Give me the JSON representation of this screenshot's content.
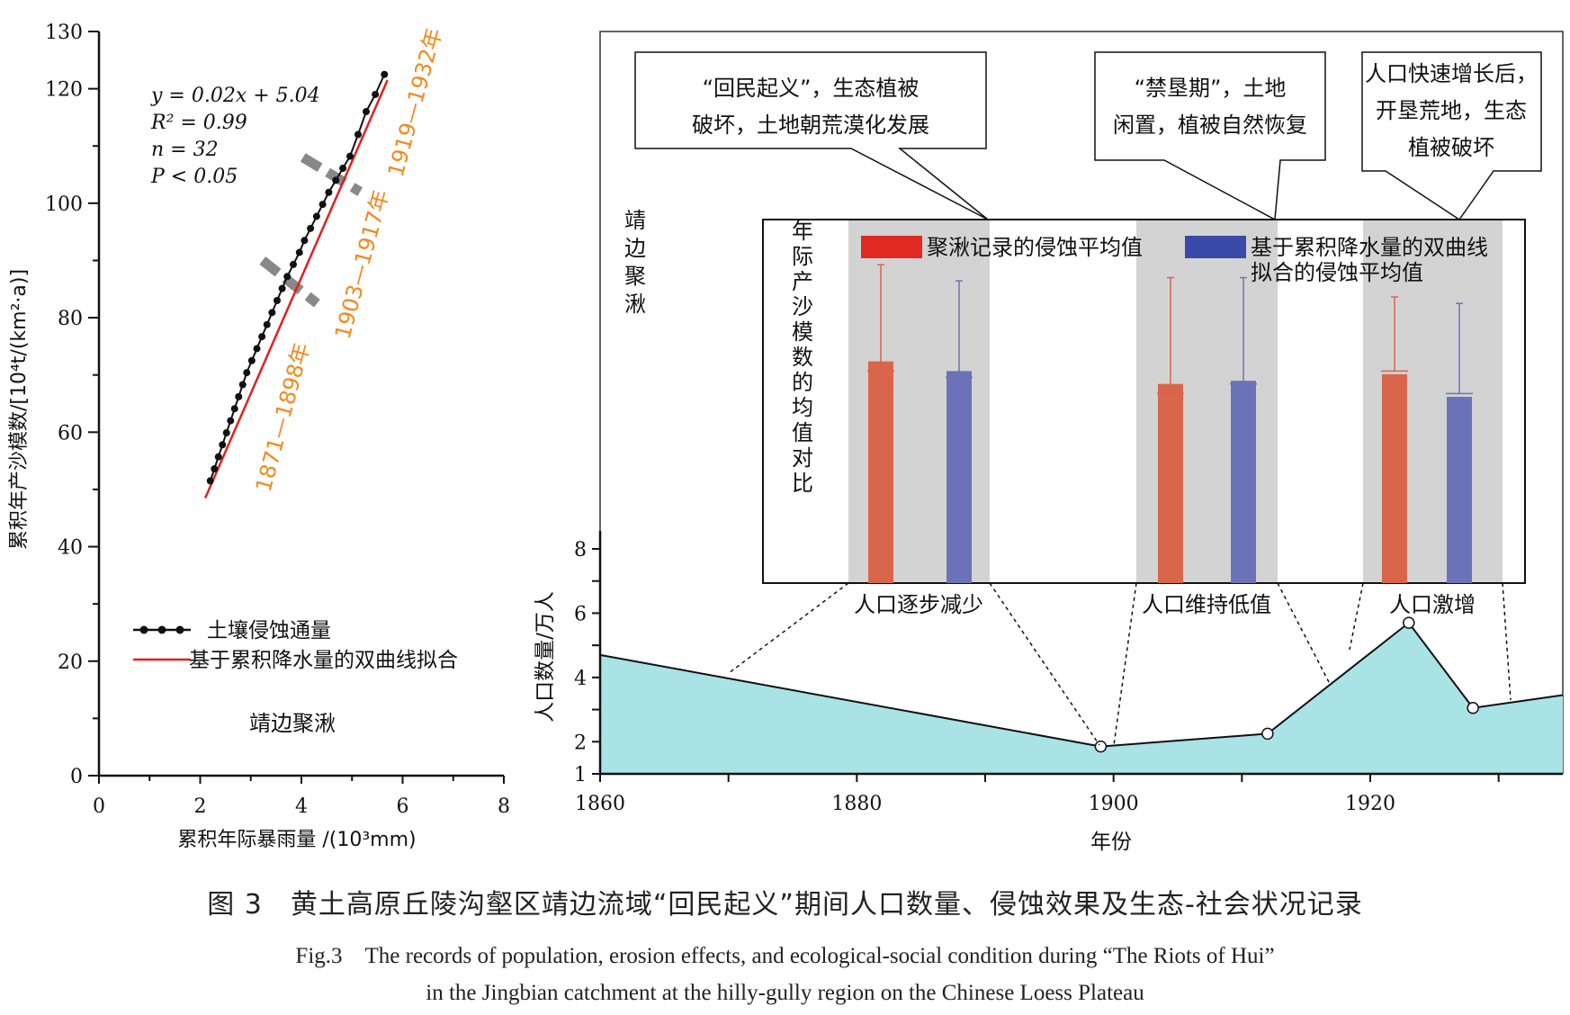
{
  "chart_data": [
    {
      "type": "scatter",
      "xlabel": "累积年际暴雨量 /(10³mm)",
      "ylabel": "累积年产沙模数/[10⁴t/(km²·a)]",
      "xlim": [
        0,
        8
      ],
      "ylim": [
        0,
        130
      ],
      "x_ticks": [
        0,
        2,
        4,
        6,
        8
      ],
      "y_ticks": [
        0,
        20,
        40,
        60,
        80,
        100,
        120,
        130
      ],
      "site_label": "靖边聚湫",
      "equation": [
        "y = 0.02x + 5.04",
        "R² = 0.99",
        "n = 32",
        "P < 0.05"
      ],
      "legend": [
        "土壤侵蚀通量",
        "基于累积降水量的双曲线拟合"
      ],
      "period_labels": [
        "1871—1898年",
        "1903—1917年",
        "1919—1932年"
      ],
      "colors": {
        "points": "#111111",
        "fit": "#e02020",
        "period_text": "#f08a1e",
        "break_marks": "#888888"
      },
      "series": [
        {
          "name": "土壤侵蚀通量",
          "x": [
            2.2,
            2.28,
            2.36,
            2.44,
            2.52,
            2.6,
            2.68,
            2.76,
            2.84,
            2.92,
            3.02,
            3.12,
            3.22,
            3.32,
            3.42,
            3.52,
            3.62,
            3.72,
            3.84,
            3.96,
            4.06,
            4.18,
            4.3,
            4.42,
            4.54,
            4.68,
            4.82,
            4.96,
            5.12,
            5.28,
            5.46,
            5.64
          ],
          "y": [
            51.5,
            53.6,
            55.7,
            57.8,
            59.9,
            62.0,
            64.1,
            66.2,
            68.3,
            70.4,
            72.5,
            74.6,
            76.7,
            78.8,
            80.9,
            83.0,
            85.1,
            87.2,
            89.3,
            91.4,
            93.5,
            95.6,
            97.7,
            99.8,
            101.9,
            104.0,
            106.1,
            108.2,
            112.0,
            116.0,
            119.0,
            122.5
          ]
        },
        {
          "name": "基于累积降水量的双曲线拟合",
          "x": [
            2.1,
            5.7
          ],
          "y": [
            48.5,
            121.5
          ]
        }
      ]
    },
    {
      "type": "area",
      "xlabel": "年份",
      "ylabel": "人口数量/万人",
      "xlim": [
        1860,
        1935
      ],
      "ylim": [
        1,
        8
      ],
      "x_ticks": [
        1860,
        1880,
        1900,
        1920
      ],
      "y_ticks": [
        1,
        2,
        4,
        6,
        8
      ],
      "x": [
        1860,
        1899,
        1912,
        1923,
        1928,
        1935
      ],
      "y": [
        4.7,
        1.85,
        2.25,
        5.7,
        3.05,
        3.45
      ],
      "marked_points_x": [
        1899,
        1912,
        1923,
        1928
      ],
      "colors": {
        "fill": "#a9e3e6",
        "line": "#111111"
      },
      "site_label": "靖边聚湫",
      "annotations": [
        {
          "text": "“回民起义”，生态植被破坏，土地朝荒漠化发展",
          "lines": [
            "“回民起义”，生态植被",
            "破坏，土地朝荒漠化发展"
          ]
        },
        {
          "text": "“禁垦期”，土地闲置，植被自然恢复",
          "lines": [
            "“禁垦期”，土地",
            "闲置，植被自然恢复"
          ]
        },
        {
          "text": "人口快速增长后，开垦荒地，生态植被破坏",
          "lines": [
            "人口快速增长后，",
            "开垦荒地，生态",
            "植被破坏"
          ]
        }
      ],
      "period_labels": [
        "人口逐步减少",
        "人口维持低值",
        "人口激增"
      ],
      "shaded_periods": [
        [
          1871,
          1898
        ],
        [
          1903,
          1917
        ],
        [
          1919,
          1932
        ]
      ]
    },
    {
      "type": "bar",
      "title": "年际产沙模数的均值对比",
      "categories": [
        "人口逐步减少",
        "人口维持低值",
        "人口激增"
      ],
      "ylim": [
        0,
        100
      ],
      "series": [
        {
          "name": "聚湫记录的侵蚀平均值",
          "values": [
            61,
            54,
            57
          ],
          "error_bars": [
            [
              58,
              91
            ],
            [
              51,
              87
            ],
            [
              58,
              81
            ]
          ]
        },
        {
          "name": "基于累积降水量的双曲线拟合的侵蚀平均值",
          "values": [
            58,
            55,
            50
          ],
          "error_bars": [
            [
              56,
              86
            ],
            [
              54,
              87
            ],
            [
              51,
              79
            ]
          ]
        }
      ],
      "colors": {
        "series_1": "#d9654b",
        "series_2": "#6b73b8",
        "legend_1": "#e02a22",
        "legend_2": "#3a4aa8",
        "period_shade": "#d3d3d3"
      }
    }
  ],
  "caption": {
    "zh": "图 3　黄土高原丘陵沟壑区靖边流域“回民起义”期间人口数量、侵蚀效果及生态-社会状况记录",
    "en_line1": "Fig.3　The records of population, erosion effects, and ecological-social condition during “The Riots of Hui”",
    "en_line2": "in the Jingbian catchment at the hilly-gully region on the Chinese Loess Plateau"
  }
}
